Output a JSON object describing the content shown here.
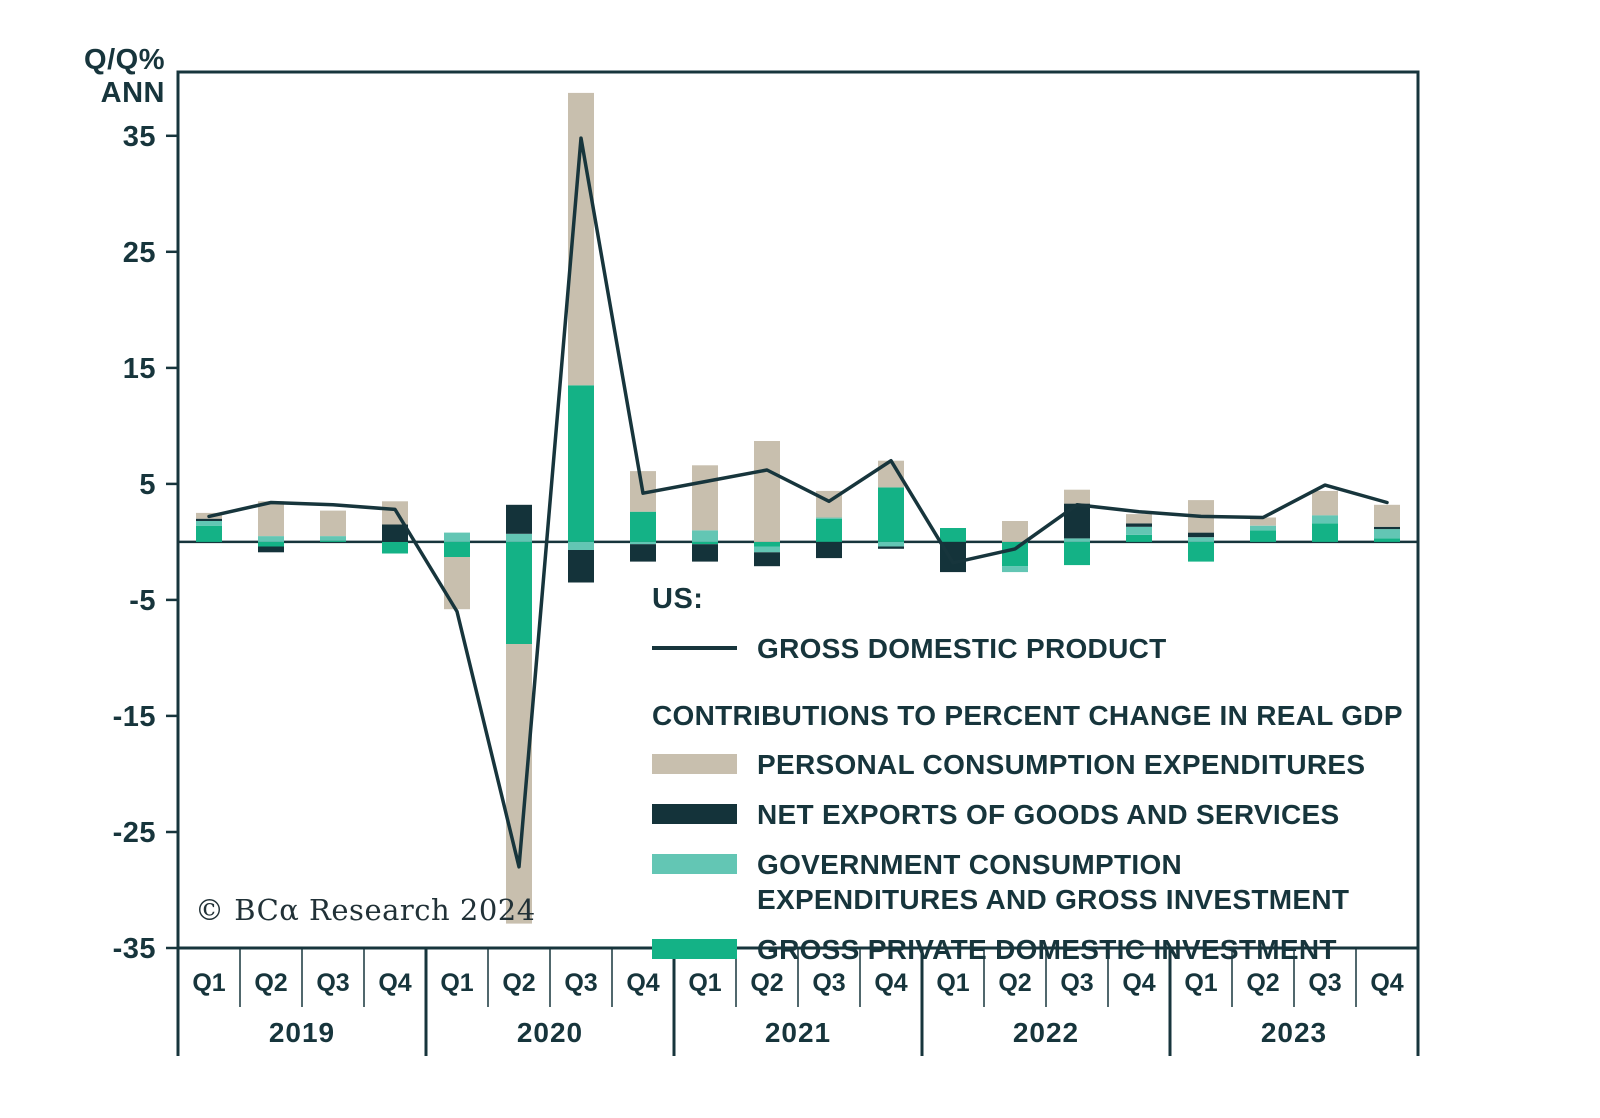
{
  "axis": {
    "corner_label_line1": "Q/Q%",
    "corner_label_line2": "ANN"
  },
  "legend": {
    "group_label": "US:",
    "line_label": "GROSS DOMESTIC PRODUCT",
    "contrib_header": "CONTRIBUTIONS TO PERCENT CHANGE IN REAL GDP",
    "items": [
      {
        "label": "PERSONAL CONSUMPTION EXPENDITURES",
        "color": "#c8bfae"
      },
      {
        "label": "NET EXPORTS OF GOODS AND SERVICES",
        "color": "#14333a"
      },
      {
        "label": "GOVERNMENT CONSUMPTION EXPENDITURES AND GROSS INVESTMENT",
        "color": "#63c6b4"
      },
      {
        "label": "GROSS PRIVATE DOMESTIC INVESTMENT",
        "color": "#14b286"
      }
    ]
  },
  "copyright": "© BCα Research 2024",
  "chart_data": {
    "type": "bar",
    "stacked": true,
    "title": "",
    "ylabel": "Q/Q% ANN",
    "xlabel": "",
    "ylim": [
      -35,
      40.5
    ],
    "y_ticks": [
      35,
      25,
      15,
      5,
      -5,
      -15,
      -25,
      -35
    ],
    "grid": false,
    "legend_position": "inside-right",
    "frame_color": "#17353c",
    "quarter_labels": [
      "Q1",
      "Q2",
      "Q3",
      "Q4",
      "Q1",
      "Q2",
      "Q3",
      "Q4",
      "Q1",
      "Q2",
      "Q3",
      "Q4",
      "Q1",
      "Q2",
      "Q3",
      "Q4",
      "Q1",
      "Q2",
      "Q3",
      "Q4"
    ],
    "year_labels": [
      "2019",
      "2020",
      "2021",
      "2022",
      "2023"
    ],
    "categories": [
      "2019 Q1",
      "2019 Q2",
      "2019 Q3",
      "2019 Q4",
      "2020 Q1",
      "2020 Q2",
      "2020 Q3",
      "2020 Q4",
      "2021 Q1",
      "2021 Q2",
      "2021 Q3",
      "2021 Q4",
      "2022 Q1",
      "2022 Q2",
      "2022 Q3",
      "2022 Q4",
      "2023 Q1",
      "2023 Q2",
      "2023 Q3",
      "2023 Q4"
    ],
    "stack_order": [
      "inv",
      "govt",
      "nx",
      "pce"
    ],
    "series": [
      {
        "key": "gdp",
        "name": "GROSS DOMESTIC PRODUCT",
        "type": "line",
        "color": "#17353c",
        "values": [
          2.2,
          3.4,
          3.2,
          2.8,
          -6.0,
          -28.0,
          34.8,
          4.2,
          5.2,
          6.2,
          3.5,
          7.0,
          -1.8,
          -0.6,
          3.2,
          2.6,
          2.2,
          2.1,
          4.9,
          3.4
        ]
      },
      {
        "key": "pce",
        "name": "PERSONAL CONSUMPTION EXPENDITURES",
        "type": "bar",
        "color": "#c8bfae",
        "values": [
          0.5,
          3.0,
          2.2,
          2.0,
          -4.5,
          -24.1,
          25.2,
          3.5,
          5.6,
          8.7,
          2.3,
          2.3,
          0.0,
          1.8,
          1.2,
          0.8,
          2.8,
          0.7,
          2.1,
          1.9
        ]
      },
      {
        "key": "nx",
        "name": "NET EXPORTS OF GOODS AND SERVICES",
        "type": "bar",
        "color": "#14333a",
        "values": [
          0.2,
          -0.5,
          0.0,
          1.5,
          0.0,
          2.5,
          -2.8,
          -1.5,
          -1.5,
          -1.2,
          -1.4,
          -0.2,
          -2.6,
          0.0,
          3.0,
          0.3,
          0.4,
          0.0,
          0.0,
          0.2
        ]
      },
      {
        "key": "govt",
        "name": "GOVERNMENT CONSUMPTION EXPENDITURES AND GROSS INVESTMENT",
        "type": "bar",
        "color": "#63c6b4",
        "values": [
          0.4,
          0.5,
          0.4,
          0.0,
          0.8,
          0.7,
          -0.7,
          -0.2,
          1.0,
          -0.5,
          0.1,
          -0.4,
          0.0,
          -0.5,
          0.3,
          0.7,
          0.4,
          0.4,
          0.7,
          0.8
        ]
      },
      {
        "key": "inv",
        "name": "GROSS PRIVATE DOMESTIC INVESTMENT",
        "type": "bar",
        "color": "#14b286",
        "values": [
          1.4,
          -0.4,
          0.1,
          -1.0,
          -1.3,
          -8.8,
          13.5,
          2.6,
          -0.2,
          -0.4,
          2.0,
          4.7,
          1.2,
          -2.1,
          -2.0,
          0.6,
          -1.7,
          1.0,
          1.6,
          0.3
        ]
      }
    ]
  }
}
